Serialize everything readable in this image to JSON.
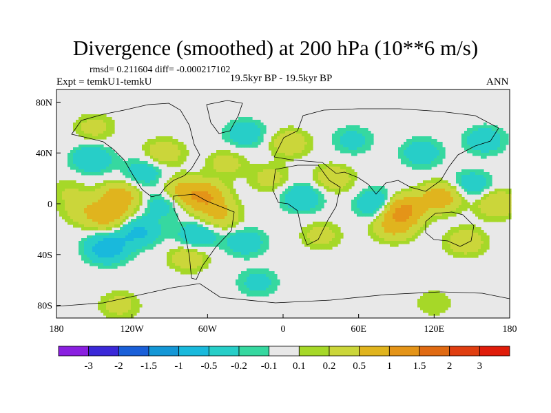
{
  "chart_data": {
    "type": "heatmap",
    "title": "Divergence (smoothed) at 200 hPa (10**6 m/s)",
    "stats_line": "rmsd= 0.211604 diff= -0.000217102",
    "experiment_label": "Expt = temkU1-temkU",
    "period_label": "19.5kyr BP - 19.5kyr BP",
    "season_label": "ANN",
    "x_ticks": [
      {
        "value": -180,
        "label": "180"
      },
      {
        "value": -120,
        "label": "120W"
      },
      {
        "value": -60,
        "label": "60W"
      },
      {
        "value": 0,
        "label": "0"
      },
      {
        "value": 60,
        "label": "60E"
      },
      {
        "value": 120,
        "label": "120E"
      },
      {
        "value": 180,
        "label": "180"
      }
    ],
    "y_ticks": [
      {
        "value": 80,
        "label": "80N"
      },
      {
        "value": 40,
        "label": "40N"
      },
      {
        "value": 0,
        "label": "0"
      },
      {
        "value": -40,
        "label": "40S"
      },
      {
        "value": -80,
        "label": "80S"
      }
    ],
    "xlim": [
      -180,
      180
    ],
    "ylim": [
      -90,
      90
    ],
    "colorbar": {
      "colors": [
        "#8a1fe0",
        "#3b28d8",
        "#1a5fd8",
        "#1497d6",
        "#19b9dc",
        "#27cec8",
        "#36d8a0",
        "#e8e8e8",
        "#a6d828",
        "#cbd63a",
        "#e0b41e",
        "#e49418",
        "#e06a12",
        "#e03e10",
        "#e01c0a"
      ],
      "labels": [
        "-3",
        "-2",
        "-1.5",
        "-1",
        "-0.5",
        "-0.2",
        "-0.1",
        "0.1",
        "0.2",
        "0.5",
        "1",
        "1.5",
        "2",
        "3"
      ]
    },
    "field": [
      {
        "lon": -150,
        "lat": 60,
        "value": 0.3
      },
      {
        "lon": -152,
        "lat": 35,
        "value": -0.5
      },
      {
        "lon": -170,
        "lat": 10,
        "value": 0.2
      },
      {
        "lon": -160,
        "lat": -5,
        "value": 0.3
      },
      {
        "lon": -130,
        "lat": 5,
        "value": 0.8
      },
      {
        "lon": -140,
        "lat": -10,
        "value": 0.7
      },
      {
        "lon": -115,
        "lat": -22,
        "value": -0.6
      },
      {
        "lon": -140,
        "lat": -35,
        "value": -0.8
      },
      {
        "lon": -110,
        "lat": 25,
        "value": -0.4
      },
      {
        "lon": -95,
        "lat": 40,
        "value": 0.4
      },
      {
        "lon": -80,
        "lat": 10,
        "value": 0.6
      },
      {
        "lon": -62,
        "lat": 5,
        "value": 1.0
      },
      {
        "lon": -95,
        "lat": 0,
        "value": -0.4
      },
      {
        "lon": -68,
        "lat": -25,
        "value": -0.5
      },
      {
        "lon": -75,
        "lat": -42,
        "value": 0.4
      },
      {
        "lon": -45,
        "lat": 32,
        "value": 0.3
      },
      {
        "lon": -30,
        "lat": 55,
        "value": -0.4
      },
      {
        "lon": -50,
        "lat": -10,
        "value": 0.5
      },
      {
        "lon": -30,
        "lat": -30,
        "value": -0.4
      },
      {
        "lon": -10,
        "lat": 20,
        "value": 0.3
      },
      {
        "lon": 5,
        "lat": 48,
        "value": 0.4
      },
      {
        "lon": 15,
        "lat": 5,
        "value": -0.5
      },
      {
        "lon": 30,
        "lat": -25,
        "value": 0.3
      },
      {
        "lon": 40,
        "lat": 20,
        "value": 0.4
      },
      {
        "lon": 55,
        "lat": 50,
        "value": -0.3
      },
      {
        "lon": 75,
        "lat": 0,
        "value": -0.6
      },
      {
        "lon": 95,
        "lat": -5,
        "value": 1.2
      },
      {
        "lon": 88,
        "lat": -18,
        "value": 0.6
      },
      {
        "lon": 110,
        "lat": 40,
        "value": -0.4
      },
      {
        "lon": 125,
        "lat": 5,
        "value": 0.8
      },
      {
        "lon": 150,
        "lat": 15,
        "value": -0.4
      },
      {
        "lon": 145,
        "lat": -30,
        "value": 0.4
      },
      {
        "lon": 170,
        "lat": 0,
        "value": 0.5
      },
      {
        "lon": 160,
        "lat": 50,
        "value": -0.4
      },
      {
        "lon": -20,
        "lat": -62,
        "value": -0.3
      },
      {
        "lon": -130,
        "lat": -80,
        "value": 0.3
      },
      {
        "lon": 120,
        "lat": -78,
        "value": 0.2
      }
    ]
  }
}
